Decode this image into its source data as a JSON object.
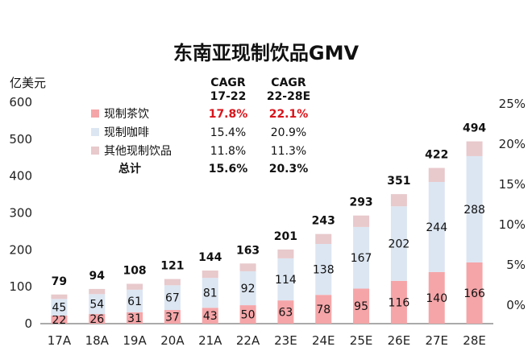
{
  "chart_data": {
    "type": "bar",
    "stacked": true,
    "title": "东南亚现制饮品GMV",
    "ylabel": "亿美元",
    "ylim": [
      0,
      600
    ],
    "yticks": [
      "0",
      "100",
      "200",
      "300",
      "400",
      "500",
      "600"
    ],
    "y2ticks": [
      "0%",
      "5%",
      "10%",
      "15%",
      "20%",
      "25%"
    ],
    "categories": [
      "17A",
      "18A",
      "19A",
      "20A",
      "21A",
      "22A",
      "23E",
      "24E",
      "25E",
      "26E",
      "27E",
      "28E"
    ],
    "series": [
      {
        "name": "现制茶饮",
        "color": "#f5a5a8",
        "values": [
          22,
          26,
          31,
          37,
          43,
          50,
          63,
          78,
          95,
          116,
          140,
          166
        ]
      },
      {
        "name": "现制咖啡",
        "color": "#dce6f2",
        "values": [
          45,
          54,
          61,
          67,
          81,
          92,
          114,
          138,
          167,
          202,
          244,
          288
        ]
      },
      {
        "name": "其他现制饮品",
        "color": "#e8c9cc",
        "values": [
          12,
          14,
          16,
          17,
          20,
          21,
          24,
          27,
          31,
          33,
          38,
          40
        ]
      }
    ],
    "totals": [
      79,
      94,
      108,
      121,
      144,
      163,
      201,
      243,
      293,
      351,
      422,
      494
    ],
    "legend_table": {
      "headers": [
        [
          "CAGR",
          "17-22"
        ],
        [
          "CAGR",
          "22-28E"
        ]
      ],
      "rows": [
        {
          "label": "现制茶饮",
          "v1": "17.8%",
          "v2": "22.1%"
        },
        {
          "label": "现制咖啡",
          "v1": "15.4%",
          "v2": "20.9%"
        },
        {
          "label": "其他现制饮品",
          "v1": "11.8%",
          "v2": "11.3%"
        },
        {
          "label": "总计",
          "v1": "15.6%",
          "v2": "20.3%"
        }
      ]
    },
    "grid": false
  }
}
